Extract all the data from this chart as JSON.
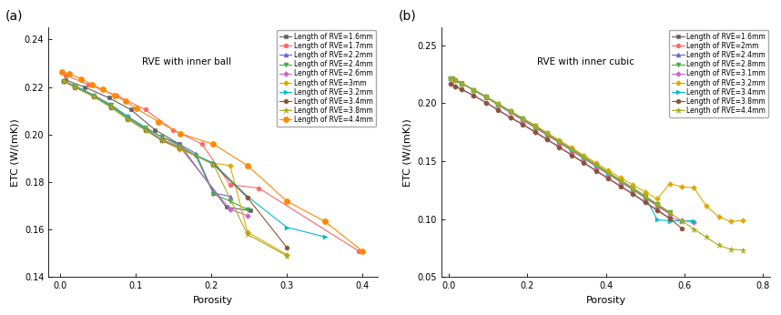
{
  "panel_a": {
    "title": "RVE with inner ball",
    "xlabel": "Porosity",
    "ylabel": "ETC (W/(mK))",
    "xlim": [
      -0.015,
      0.42
    ],
    "ylim": [
      0.14,
      0.245
    ],
    "xticks": [
      0.0,
      0.1,
      0.2,
      0.3,
      0.4
    ],
    "yticks": [
      0.14,
      0.16,
      0.18,
      0.2,
      0.22,
      0.24
    ],
    "series": [
      {
        "label": "Length of RVE=1.6mm",
        "color": "#606060",
        "marker": "s",
        "markersize": 3.5,
        "x": [
          0.008,
          0.033,
          0.065,
          0.094,
          0.126,
          0.158,
          0.22,
          0.252
        ],
        "y": [
          0.223,
          0.22,
          0.2155,
          0.2105,
          0.202,
          0.196,
          0.1695,
          0.168
        ]
      },
      {
        "label": "Length of RVE=1.7mm",
        "color": "#ff6666",
        "marker": "o",
        "markersize": 3.5,
        "x": [
          0.008,
          0.038,
          0.075,
          0.113,
          0.15,
          0.188,
          0.225,
          0.263,
          0.395
        ],
        "y": [
          0.225,
          0.221,
          0.2165,
          0.2105,
          0.202,
          0.196,
          0.179,
          0.1775,
          0.151
        ]
      },
      {
        "label": "Length of RVE=2.2mm",
        "color": "#6666cc",
        "marker": "^",
        "markersize": 3.5,
        "x": [
          0.005,
          0.02,
          0.045,
          0.068,
          0.09,
          0.113,
          0.135,
          0.158,
          0.18,
          0.203,
          0.225
        ],
        "y": [
          0.2225,
          0.2205,
          0.2165,
          0.2125,
          0.2075,
          0.203,
          0.199,
          0.196,
          0.192,
          0.1755,
          0.174
        ]
      },
      {
        "label": "Length of RVE=2.4mm",
        "color": "#44aa44",
        "marker": "v",
        "markersize": 3.5,
        "x": [
          0.005,
          0.02,
          0.045,
          0.068,
          0.09,
          0.113,
          0.135,
          0.158,
          0.18,
          0.203,
          0.225,
          0.248
        ],
        "y": [
          0.2225,
          0.2205,
          0.2165,
          0.2125,
          0.2075,
          0.203,
          0.199,
          0.1955,
          0.191,
          0.175,
          0.172,
          0.1685
        ]
      },
      {
        "label": "Length of RVE=2.6mm",
        "color": "#cc66cc",
        "marker": "D",
        "markersize": 3.0,
        "x": [
          0.005,
          0.02,
          0.045,
          0.068,
          0.09,
          0.113,
          0.135,
          0.158,
          0.225,
          0.248
        ],
        "y": [
          0.2225,
          0.2205,
          0.2165,
          0.212,
          0.2075,
          0.2025,
          0.198,
          0.195,
          0.1685,
          0.166
        ]
      },
      {
        "label": "Length of RVE=3mm",
        "color": "#ddaa00",
        "marker": "D",
        "markersize": 3.0,
        "x": [
          0.005,
          0.02,
          0.045,
          0.068,
          0.09,
          0.113,
          0.135,
          0.158,
          0.203,
          0.225,
          0.248,
          0.3
        ],
        "y": [
          0.2225,
          0.2205,
          0.2165,
          0.212,
          0.207,
          0.2025,
          0.1975,
          0.194,
          0.188,
          0.187,
          0.159,
          0.1495
        ]
      },
      {
        "label": "Length of RVE=3.2mm",
        "color": "#00bbcc",
        "marker": ">",
        "markersize": 3.5,
        "x": [
          0.005,
          0.02,
          0.045,
          0.068,
          0.09,
          0.113,
          0.135,
          0.158,
          0.203,
          0.248,
          0.3,
          0.35
        ],
        "y": [
          0.2225,
          0.2205,
          0.2165,
          0.212,
          0.2075,
          0.2025,
          0.1975,
          0.1945,
          0.188,
          0.174,
          0.161,
          0.157
        ]
      },
      {
        "label": "Length of RVE=3.4mm",
        "color": "#885533",
        "marker": "o",
        "markersize": 3.5,
        "x": [
          0.005,
          0.02,
          0.045,
          0.068,
          0.09,
          0.113,
          0.135,
          0.158,
          0.203,
          0.248,
          0.3
        ],
        "y": [
          0.2225,
          0.22,
          0.216,
          0.2115,
          0.2065,
          0.202,
          0.1975,
          0.1945,
          0.1875,
          0.1735,
          0.1525
        ]
      },
      {
        "label": "Length of RVE=3.8mm",
        "color": "#aaaa22",
        "marker": "*",
        "markersize": 5.0,
        "x": [
          0.005,
          0.02,
          0.045,
          0.068,
          0.09,
          0.113,
          0.135,
          0.158,
          0.203,
          0.248,
          0.3
        ],
        "y": [
          0.2225,
          0.22,
          0.216,
          0.2115,
          0.2065,
          0.202,
          0.1975,
          0.1945,
          0.1875,
          0.158,
          0.149
        ]
      },
      {
        "label": "Length of RVE=4.4mm",
        "color": "#ff8800",
        "marker": "o",
        "markersize": 4.5,
        "x": [
          0.003,
          0.013,
          0.028,
          0.043,
          0.057,
          0.072,
          0.087,
          0.101,
          0.13,
          0.159,
          0.203,
          0.248,
          0.3,
          0.35,
          0.4
        ],
        "y": [
          0.2265,
          0.2255,
          0.2235,
          0.221,
          0.219,
          0.2165,
          0.214,
          0.211,
          0.2055,
          0.2005,
          0.196,
          0.187,
          0.172,
          0.1635,
          0.151
        ]
      }
    ]
  },
  "panel_b": {
    "title": "RVE with inner cubic",
    "xlabel": "Porosity",
    "ylabel": "ETC (W/(mK))",
    "xlim": [
      -0.02,
      0.82
    ],
    "ylim": [
      0.05,
      0.265
    ],
    "xticks": [
      0.0,
      0.2,
      0.4,
      0.6,
      0.8
    ],
    "yticks": [
      0.05,
      0.1,
      0.15,
      0.2,
      0.25
    ],
    "series": [
      {
        "label": "Length of RVE=1.6mm",
        "color": "#606060",
        "marker": "s",
        "markersize": 3.5,
        "x": [
          0.008,
          0.031,
          0.063,
          0.094,
          0.125,
          0.156,
          0.188,
          0.219,
          0.25,
          0.281,
          0.313,
          0.344,
          0.375,
          0.406,
          0.438,
          0.469,
          0.5,
          0.531,
          0.563
        ],
        "y": [
          0.2215,
          0.2175,
          0.211,
          0.205,
          0.1985,
          0.192,
          0.1855,
          0.179,
          0.1725,
          0.166,
          0.159,
          0.1525,
          0.1455,
          0.139,
          0.132,
          0.1255,
          0.1185,
          0.1115,
          0.1045
        ]
      },
      {
        "label": "Length of RVE=2mm",
        "color": "#ff6666",
        "marker": "o",
        "markersize": 3.5,
        "x": [
          0.008,
          0.031,
          0.063,
          0.094,
          0.125,
          0.156,
          0.188,
          0.219,
          0.25,
          0.281,
          0.313,
          0.344,
          0.375,
          0.406,
          0.438,
          0.469,
          0.5,
          0.531,
          0.563
        ],
        "y": [
          0.2215,
          0.2175,
          0.2115,
          0.2055,
          0.199,
          0.1925,
          0.186,
          0.1795,
          0.173,
          0.1665,
          0.1595,
          0.153,
          0.146,
          0.1395,
          0.1325,
          0.126,
          0.119,
          0.112,
          0.105
        ]
      },
      {
        "label": "Length of RVE=2.4mm",
        "color": "#6666cc",
        "marker": "^",
        "markersize": 3.5,
        "x": [
          0.004,
          0.016,
          0.031,
          0.063,
          0.094,
          0.125,
          0.156,
          0.188,
          0.219,
          0.25,
          0.281,
          0.313,
          0.344,
          0.375,
          0.406,
          0.438,
          0.469,
          0.5,
          0.531,
          0.563
        ],
        "y": [
          0.2215,
          0.2195,
          0.217,
          0.2115,
          0.2055,
          0.1995,
          0.193,
          0.1865,
          0.18,
          0.1735,
          0.167,
          0.16,
          0.1535,
          0.1465,
          0.14,
          0.133,
          0.1265,
          0.1195,
          0.1125,
          0.1055
        ]
      },
      {
        "label": "Length of RVE=2.8mm",
        "color": "#44aa44",
        "marker": "v",
        "markersize": 3.5,
        "x": [
          0.004,
          0.016,
          0.031,
          0.063,
          0.094,
          0.125,
          0.156,
          0.188,
          0.219,
          0.25,
          0.281,
          0.313,
          0.344,
          0.375,
          0.406,
          0.438,
          0.469,
          0.5,
          0.531,
          0.563
        ],
        "y": [
          0.2215,
          0.2195,
          0.217,
          0.2115,
          0.2055,
          0.1995,
          0.193,
          0.187,
          0.1805,
          0.174,
          0.1675,
          0.1605,
          0.154,
          0.147,
          0.1405,
          0.1335,
          0.127,
          0.12,
          0.113,
          0.106
        ]
      },
      {
        "label": "Length of RVE=3.1mm",
        "color": "#cc66cc",
        "marker": "D",
        "markersize": 3.0,
        "x": [
          0.004,
          0.016,
          0.031,
          0.063,
          0.094,
          0.125,
          0.156,
          0.188,
          0.219,
          0.25,
          0.281,
          0.313,
          0.344,
          0.375,
          0.406,
          0.438,
          0.469,
          0.5,
          0.531,
          0.563,
          0.594,
          0.625
        ],
        "y": [
          0.2165,
          0.2145,
          0.212,
          0.2065,
          0.2005,
          0.1945,
          0.188,
          0.182,
          0.1755,
          0.169,
          0.1625,
          0.1555,
          0.149,
          0.142,
          0.1355,
          0.1285,
          0.122,
          0.115,
          0.108,
          0.101,
          0.0988,
          0.0975
        ]
      },
      {
        "label": "Length of RVE=3.2mm",
        "color": "#ddaa00",
        "marker": "D",
        "markersize": 3.0,
        "x": [
          0.004,
          0.016,
          0.031,
          0.063,
          0.094,
          0.125,
          0.156,
          0.188,
          0.219,
          0.25,
          0.281,
          0.313,
          0.344,
          0.375,
          0.406,
          0.438,
          0.469,
          0.5,
          0.531,
          0.563,
          0.594,
          0.625,
          0.656,
          0.688,
          0.719,
          0.75
        ],
        "y": [
          0.2215,
          0.2195,
          0.217,
          0.2115,
          0.2055,
          0.1995,
          0.193,
          0.187,
          0.181,
          0.1745,
          0.168,
          0.1615,
          0.155,
          0.1485,
          0.142,
          0.1355,
          0.1295,
          0.1235,
          0.1175,
          0.1305,
          0.128,
          0.127,
          0.1115,
          0.102,
          0.098,
          0.099
        ]
      },
      {
        "label": "Length of RVE=3.4mm",
        "color": "#00bbcc",
        "marker": ">",
        "markersize": 3.5,
        "x": [
          0.004,
          0.016,
          0.031,
          0.063,
          0.094,
          0.125,
          0.156,
          0.188,
          0.219,
          0.25,
          0.281,
          0.313,
          0.344,
          0.375,
          0.406,
          0.438,
          0.469,
          0.5,
          0.531,
          0.563,
          0.594,
          0.625
        ],
        "y": [
          0.2215,
          0.2195,
          0.217,
          0.2115,
          0.2055,
          0.199,
          0.193,
          0.1865,
          0.18,
          0.1735,
          0.167,
          0.16,
          0.1535,
          0.1465,
          0.14,
          0.133,
          0.1265,
          0.1195,
          0.0995,
          0.0985,
          0.0985,
          0.0985
        ]
      },
      {
        "label": "Length of RVE=3.8mm",
        "color": "#885533",
        "marker": "o",
        "markersize": 3.5,
        "x": [
          0.004,
          0.016,
          0.031,
          0.063,
          0.094,
          0.125,
          0.156,
          0.188,
          0.219,
          0.25,
          0.281,
          0.313,
          0.344,
          0.375,
          0.406,
          0.438,
          0.469,
          0.5,
          0.531,
          0.563,
          0.594
        ],
        "y": [
          0.2165,
          0.2145,
          0.212,
          0.2065,
          0.2005,
          0.194,
          0.1875,
          0.1815,
          0.175,
          0.1685,
          0.162,
          0.155,
          0.1485,
          0.1415,
          0.135,
          0.128,
          0.1215,
          0.1145,
          0.1075,
          0.1005,
          0.092
        ]
      },
      {
        "label": "Length of RVE=4.4mm",
        "color": "#aaaa22",
        "marker": "*",
        "markersize": 5.0,
        "x": [
          0.004,
          0.016,
          0.031,
          0.063,
          0.094,
          0.125,
          0.156,
          0.188,
          0.219,
          0.25,
          0.281,
          0.313,
          0.344,
          0.375,
          0.406,
          0.438,
          0.469,
          0.5,
          0.531,
          0.563,
          0.594,
          0.625,
          0.656,
          0.688,
          0.719,
          0.75
        ],
        "y": [
          0.2215,
          0.2195,
          0.217,
          0.2115,
          0.2055,
          0.199,
          0.193,
          0.1865,
          0.18,
          0.1735,
          0.167,
          0.16,
          0.1535,
          0.1465,
          0.14,
          0.133,
          0.1265,
          0.1195,
          0.1125,
          0.1055,
          0.0985,
          0.0915,
          0.0845,
          0.0775,
          0.074,
          0.0735
        ]
      }
    ]
  }
}
